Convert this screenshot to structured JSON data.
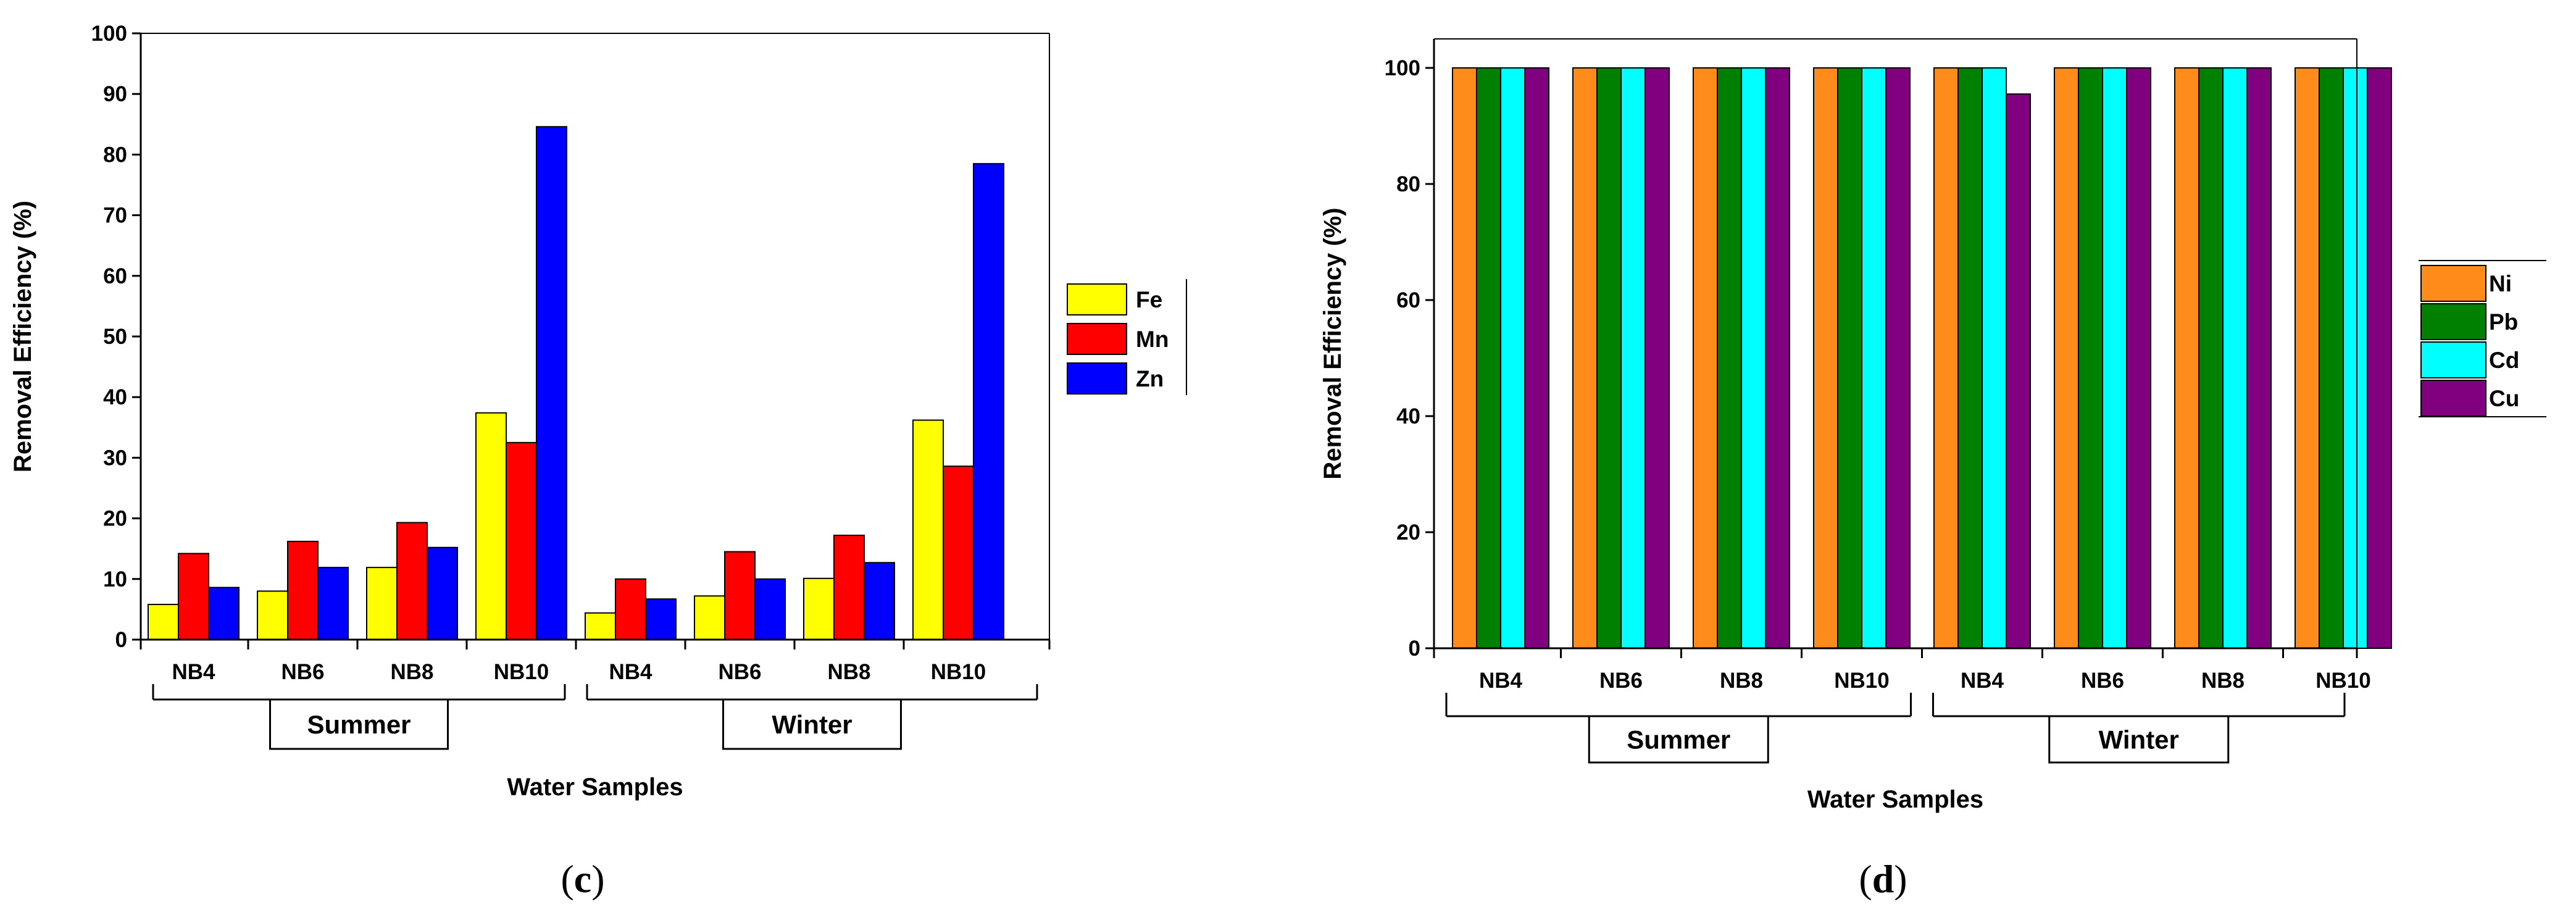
{
  "chart_data": [
    {
      "type": "bar",
      "panel_label": "c",
      "categories": [
        "NB4",
        "NB6",
        "NB8",
        "NB10",
        "NB4",
        "NB6",
        "NB8",
        "NB10"
      ],
      "groups": [
        {
          "label": "Summer",
          "categories": [
            "NB4",
            "NB6",
            "NB8",
            "NB10"
          ]
        },
        {
          "label": "Winter",
          "categories": [
            "NB4",
            "NB6",
            "NB8",
            "NB10"
          ]
        }
      ],
      "series": [
        {
          "name": "Fe",
          "color": "#ffff00",
          "values": [
            5.8,
            8.0,
            11.9,
            37.4,
            4.4,
            7.2,
            10.1,
            36.2
          ]
        },
        {
          "name": "Mn",
          "color": "#ff0000",
          "values": [
            14.2,
            16.2,
            19.3,
            32.5,
            10.0,
            14.5,
            17.2,
            28.6
          ]
        },
        {
          "name": "Zn",
          "color": "#0000ff",
          "values": [
            8.6,
            11.9,
            15.2,
            84.6,
            6.7,
            10.0,
            12.7,
            78.5
          ]
        }
      ],
      "title": "",
      "xlabel": "Water Samples",
      "ylabel": "Removal Efficiency (%)",
      "ylim": [
        0,
        100
      ],
      "yticks": [
        "0",
        "10",
        "20",
        "30",
        "40",
        "50",
        "60",
        "70",
        "80",
        "90",
        "100"
      ],
      "grid": false,
      "legend": "right"
    },
    {
      "type": "bar",
      "panel_label": "d",
      "categories": [
        "NB4",
        "NB6",
        "NB8",
        "NB10",
        "NB4",
        "NB6",
        "NB8",
        "NB10"
      ],
      "groups": [
        {
          "label": "Summer",
          "categories": [
            "NB4",
            "NB6",
            "NB8",
            "NB10"
          ]
        },
        {
          "label": "Winter",
          "categories": [
            "NB4",
            "NB6",
            "NB8",
            "NB10"
          ]
        }
      ],
      "series": [
        {
          "name": "Ni",
          "color": "#ff8c1a",
          "values": [
            100,
            100,
            100,
            100,
            100,
            100,
            100,
            100
          ]
        },
        {
          "name": "Pb",
          "color": "#008000",
          "values": [
            100,
            100,
            100,
            100,
            100,
            100,
            100,
            100
          ]
        },
        {
          "name": "Cd",
          "color": "#00ffff",
          "values": [
            100,
            100,
            100,
            100,
            100,
            100,
            100,
            100
          ]
        },
        {
          "name": "Cu",
          "color": "#800080",
          "values": [
            100,
            100,
            100,
            100,
            95.5,
            100,
            100,
            100
          ]
        }
      ],
      "title": "",
      "xlabel": "Water Samples",
      "ylabel": "Removal Efficiency (%)",
      "ylim": [
        0,
        105
      ],
      "yticks": [
        "0",
        "20",
        "40",
        "60",
        "80",
        "100"
      ],
      "grid": false,
      "legend": "right"
    }
  ]
}
